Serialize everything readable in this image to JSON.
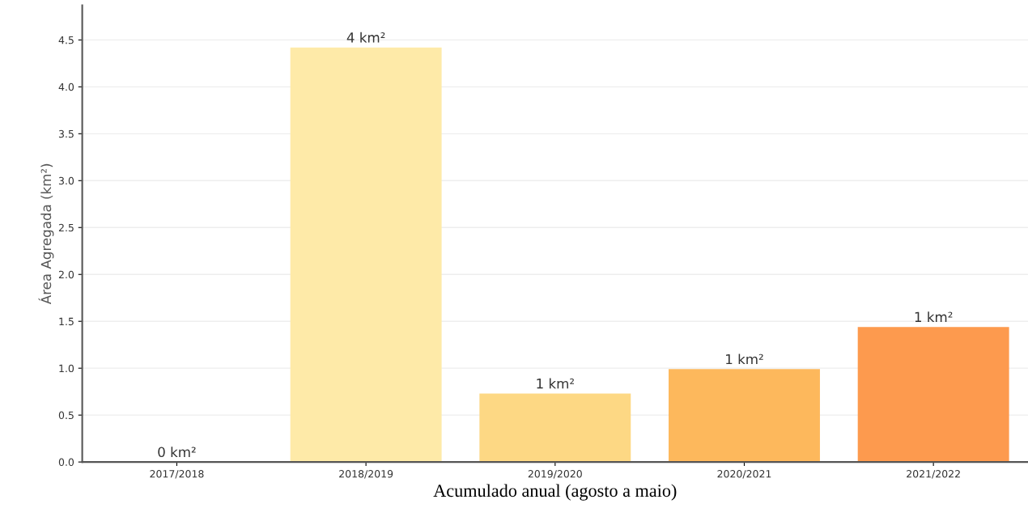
{
  "chart_data": {
    "type": "bar",
    "xlabel": "Acumulado anual (agosto a maio)",
    "ylabel": "Área Agregada (km²)",
    "categories": [
      "2017/2018",
      "2018/2019",
      "2019/2020",
      "2020/2021",
      "2021/2022"
    ],
    "values": [
      0,
      4.42,
      0.73,
      0.99,
      1.44
    ],
    "colors": [
      "#fee9a6",
      "#feeaa8",
      "#fdd884",
      "#fdb85c",
      "#fd9a4e"
    ],
    "value_labels": [
      "0 km²",
      "4 km²",
      "1 km²",
      "1 km²",
      "1 km²"
    ],
    "ylim": [
      0,
      4.87
    ],
    "yticks": [
      {
        "value": 0,
        "label": "0.0"
      },
      {
        "value": 0.5,
        "label": "0.5"
      },
      {
        "value": 1,
        "label": "1.0"
      },
      {
        "value": 1.5,
        "label": "1.5"
      },
      {
        "value": 2,
        "label": "2.0"
      },
      {
        "value": 2.5,
        "label": "2.5"
      },
      {
        "value": 3,
        "label": "3.0"
      },
      {
        "value": 3.5,
        "label": "3.5"
      },
      {
        "value": 4,
        "label": "4.0"
      },
      {
        "value": 4.5,
        "label": "4.5"
      }
    ],
    "grid": "y",
    "legend": false
  }
}
